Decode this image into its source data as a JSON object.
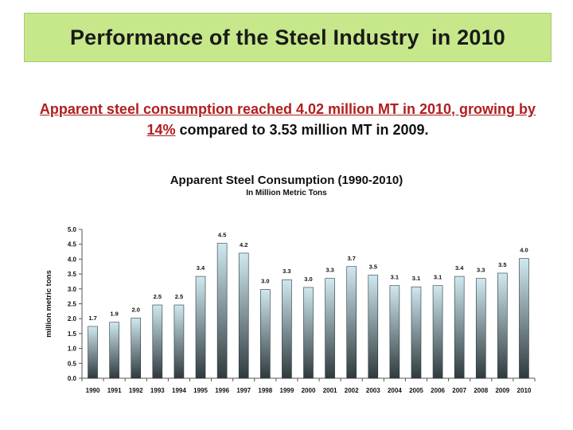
{
  "slide": {
    "title": "Performance of the Steel Industry  in 2010",
    "headline_highlight": "Apparent steel consumption reached 4.02 million MT in 2010, growing by 14%",
    "headline_rest": " compared to 3.53 million MT in 2009."
  },
  "colors": {
    "banner": "#c6e88a",
    "highlight_text": "#b01e1e",
    "bar_top": "#cfe9f0",
    "bar_bottom": "#2f3a3d"
  },
  "chart_data": {
    "type": "bar",
    "title": "Apparent Steel Consumption (1990-2010)",
    "subtitle": "In Million Metric Tons",
    "xlabel": "",
    "ylabel": "million metric tons",
    "ylim": [
      0,
      5
    ],
    "yticks": [
      "0.0",
      "0.5",
      "1.0",
      "1.5",
      "2.0",
      "2.5",
      "3.0",
      "3.5",
      "4.0",
      "4.5",
      "5.0"
    ],
    "categories": [
      "1990",
      "1991",
      "1992",
      "1993",
      "1994",
      "1995",
      "1996",
      "1997",
      "1998",
      "1999",
      "2000",
      "2001",
      "2002",
      "2003",
      "2004",
      "2005",
      "2006",
      "2007",
      "2008",
      "2009",
      "2010"
    ],
    "values": [
      1.74,
      1.88,
      2.02,
      2.46,
      2.46,
      3.42,
      4.53,
      4.2,
      2.98,
      3.31,
      3.05,
      3.35,
      3.75,
      3.46,
      3.11,
      3.07,
      3.11,
      3.42,
      3.35,
      3.53,
      4.02
    ],
    "data_labels": [
      "1.7",
      "1.9",
      "2.0",
      "2.5",
      "2.5",
      "3.4",
      "4.5",
      "4.2",
      "3.0",
      "3.3",
      "3.0",
      "3.3",
      "3.7",
      "3.5",
      "3.1",
      "3.1",
      "3.1",
      "3.4",
      "3.3",
      "3.5",
      "4.0"
    ],
    "grid": false,
    "legend": "none"
  }
}
